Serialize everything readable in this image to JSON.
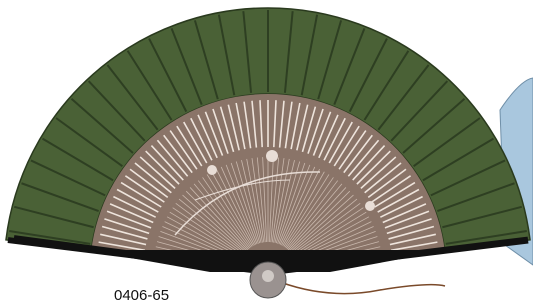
{
  "label": "0406-65"
}
